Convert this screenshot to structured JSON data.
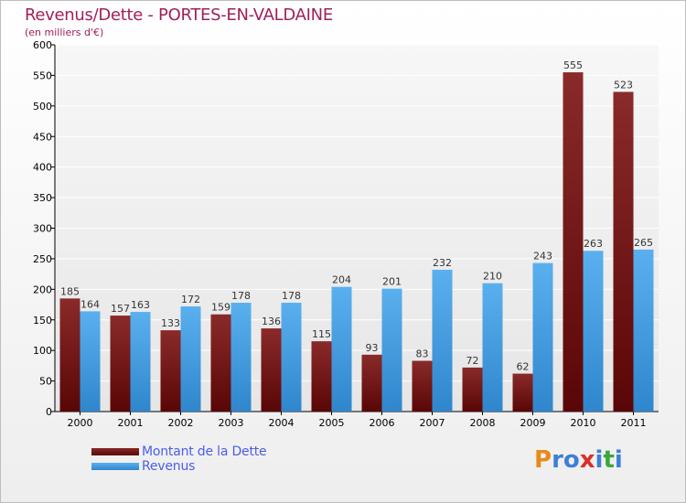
{
  "chart_data": {
    "type": "bar",
    "title": "Revenus/Dette - PORTES-EN-VALDAINE",
    "subtitle": "(en milliers d'€)",
    "categories": [
      "2000",
      "2001",
      "2002",
      "2003",
      "2004",
      "2005",
      "2006",
      "2007",
      "2008",
      "2009",
      "2010",
      "2011"
    ],
    "series": [
      {
        "name": "Montant de la Dette",
        "color": "#7a1a1a",
        "values": [
          185,
          157,
          133,
          159,
          136,
          115,
          93,
          83,
          72,
          62,
          555,
          523
        ]
      },
      {
        "name": "Revenus",
        "color": "#3f9de0",
        "values": [
          164,
          163,
          172,
          178,
          178,
          204,
          201,
          232,
          210,
          243,
          263,
          265
        ]
      }
    ],
    "yticks": [
      0,
      50,
      100,
      150,
      200,
      250,
      300,
      350,
      400,
      450,
      500,
      550,
      600
    ],
    "ylim": [
      0,
      600
    ],
    "grid": true,
    "legend": "bottom-left"
  },
  "logo": {
    "letters": [
      "P",
      "r",
      "o",
      "x",
      "i",
      "t",
      "i"
    ],
    "colors": [
      "#e88a1a",
      "#3d7fd6",
      "#3d7fd6",
      "#d8302a",
      "#3d7fd6",
      "#3aa83a",
      "#3d7fd6"
    ]
  }
}
